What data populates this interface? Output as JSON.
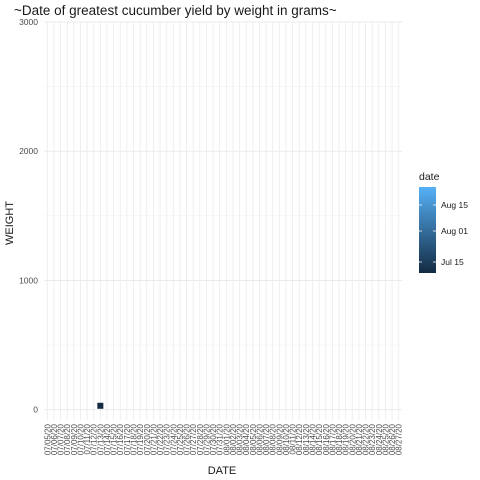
{
  "chart_data": {
    "type": "heatmap",
    "title": "~Date of greatest cucumber yield by weight in grams~",
    "xlabel": "DATE",
    "ylabel": "WEIGHT",
    "ylim": [
      -80,
      3000
    ],
    "y_ticks": [
      0,
      1000,
      2000,
      3000
    ],
    "x_tick_labels": [
      "07/05/20",
      "07/06/20",
      "07/07/20",
      "07/08/20",
      "07/09/20",
      "07/10/20",
      "07/11/20",
      "07/12/20",
      "07/13/20",
      "07/14/20",
      "07/15/20",
      "07/16/20",
      "07/17/20",
      "07/18/20",
      "07/19/20",
      "07/20/20",
      "07/21/20",
      "07/22/20",
      "07/23/20",
      "07/24/20",
      "07/25/20",
      "07/26/20",
      "07/27/20",
      "07/28/20",
      "07/29/20",
      "07/30/20",
      "07/31/20",
      "08/01/20",
      "08/02/20",
      "08/03/20",
      "08/04/20",
      "08/05/20",
      "08/06/20",
      "08/07/20",
      "08/08/20",
      "08/09/20",
      "08/10/20",
      "08/11/20",
      "08/12/20",
      "08/13/20",
      "08/14/20",
      "08/15/20",
      "08/16/20",
      "08/17/20",
      "08/18/20",
      "08/19/20",
      "08/20/20",
      "08/21/20",
      "08/22/20",
      "08/23/20",
      "08/24/20",
      "08/25/20",
      "08/26/20",
      "08/27/20"
    ],
    "points": [
      {
        "date": "07/13/20",
        "weight": 30
      }
    ],
    "grid": true,
    "legend": {
      "title": "date",
      "placement": "right",
      "labels": [
        "Aug 15",
        "Aug 01",
        "Jul 15"
      ],
      "colors": [
        "#132B43",
        "#56B1F7"
      ]
    }
  }
}
